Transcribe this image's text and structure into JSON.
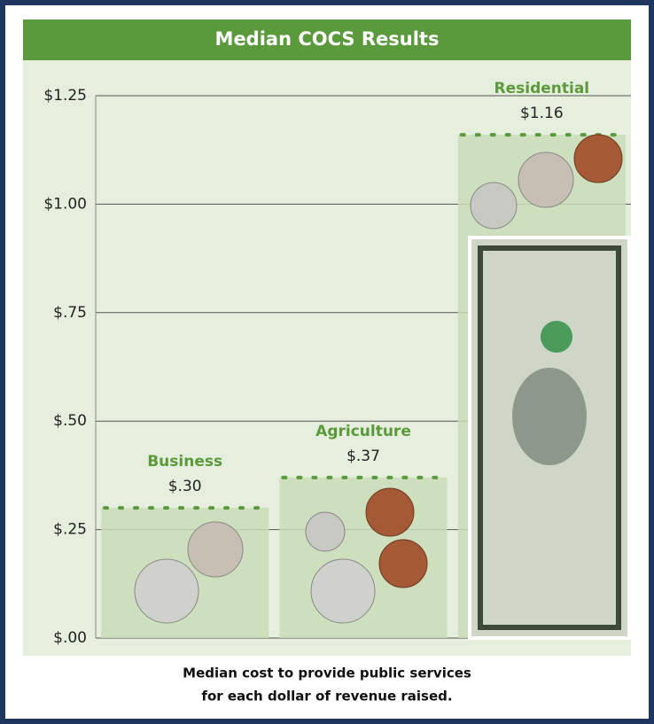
{
  "chart_data": {
    "type": "bar",
    "title": "Median COCS Results",
    "categories": [
      "Business",
      "Agriculture",
      "Residential"
    ],
    "values": [
      0.3,
      0.37,
      1.16
    ],
    "value_labels": [
      "$.30",
      "$.37",
      "$1.16"
    ],
    "color": "#c9dcb9",
    "ylim": [
      0,
      1.25
    ],
    "yticks": [
      {
        "value": 0,
        "label": "$.00"
      },
      {
        "value": 0.25,
        "label": "$.25"
      },
      {
        "value": 0.5,
        "label": "$.50"
      },
      {
        "value": 0.75,
        "label": "$.75"
      },
      {
        "value": 1,
        "label": "$1.00"
      },
      {
        "value": 1.25,
        "label": "$1.25"
      }
    ],
    "grid": true,
    "caption": [
      "Median cost to provide public services",
      "for each dollar of revenue raised."
    ]
  }
}
